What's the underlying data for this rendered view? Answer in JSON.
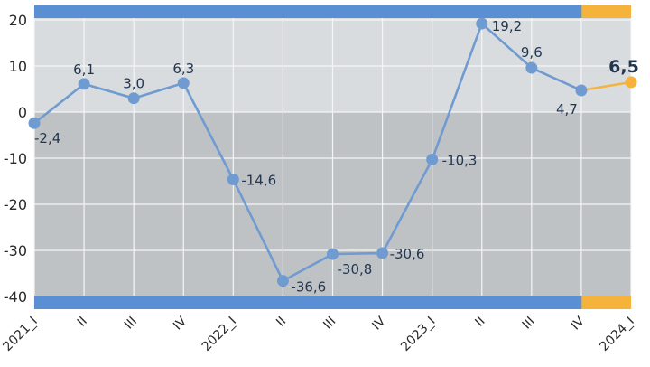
{
  "chart_data": {
    "type": "line",
    "categories": [
      "2021_I",
      "II",
      "III",
      "IV",
      "2022_I",
      "II",
      "III",
      "IV",
      "2023_I",
      "II",
      "III",
      "IV",
      "2024_I"
    ],
    "values": [
      -2.4,
      6.1,
      3.0,
      6.3,
      -14.6,
      -36.6,
      -30.8,
      -30.6,
      -10.3,
      19.2,
      9.6,
      4.7,
      6.5
    ],
    "data_labels": [
      "-2,4",
      "6,1",
      "3,0",
      "6,3",
      "-14,6",
      "-36,6",
      "-30,8",
      "-30,6",
      "-10,3",
      "19,2",
      "9,6",
      "4,7",
      "6,5"
    ],
    "y_ticks": [
      "20",
      "10",
      "0",
      "-10",
      "-20",
      "-30",
      "-40"
    ],
    "ylim": [
      -40,
      20
    ],
    "grid": true,
    "highlight_index": 12,
    "colors": {
      "series": "#6f9bd1",
      "highlight": "#f5b33b",
      "band_main": "#5b8fd4",
      "band_highlight": "#f5b33b",
      "bg_positive": "#d9dcdf",
      "bg_negative": "#bfc2c5",
      "grid": "#f4f5f6"
    }
  }
}
